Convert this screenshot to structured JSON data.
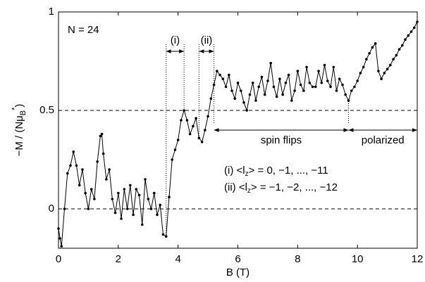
{
  "chart_data": {
    "type": "line",
    "xlabel": "B (T)",
    "ylabel": [
      "−M / (Nμ",
      "B",
      "*",
      ")"
    ],
    "color": "#000000",
    "xlim": [
      0,
      12
    ],
    "ylim": [
      -0.2,
      1
    ],
    "xticks": [
      0,
      2,
      4,
      6,
      8,
      10,
      12
    ],
    "yticks": [
      0,
      0.5,
      1
    ],
    "hlines": [
      0,
      0.5
    ],
    "x": [
      0.0,
      0.05,
      0.1,
      0.2,
      0.3,
      0.4,
      0.5,
      0.6,
      0.7,
      0.8,
      0.9,
      1.0,
      1.1,
      1.2,
      1.3,
      1.4,
      1.45,
      1.5,
      1.6,
      1.7,
      1.8,
      1.9,
      2.0,
      2.1,
      2.2,
      2.3,
      2.4,
      2.5,
      2.6,
      2.7,
      2.8,
      2.9,
      3.0,
      3.1,
      3.2,
      3.3,
      3.4,
      3.5,
      3.6,
      3.7,
      3.8,
      3.9,
      4.0,
      4.1,
      4.2,
      4.3,
      4.4,
      4.5,
      4.6,
      4.7,
      4.8,
      4.9,
      5.0,
      5.1,
      5.2,
      5.3,
      5.4,
      5.5,
      5.6,
      5.7,
      5.8,
      5.9,
      6.0,
      6.1,
      6.2,
      6.3,
      6.4,
      6.5,
      6.6,
      6.7,
      6.8,
      6.9,
      7.0,
      7.1,
      7.2,
      7.3,
      7.4,
      7.5,
      7.6,
      7.7,
      7.8,
      7.9,
      8.0,
      8.1,
      8.2,
      8.3,
      8.4,
      8.5,
      8.6,
      8.7,
      8.8,
      8.9,
      9.0,
      9.1,
      9.2,
      9.3,
      9.4,
      9.5,
      9.6,
      9.7,
      9.8,
      9.9,
      10.0,
      10.1,
      10.2,
      10.3,
      10.4,
      10.5,
      10.6,
      10.7,
      10.8,
      10.9,
      11.0,
      11.1,
      11.2,
      11.3,
      11.4,
      11.5,
      11.6,
      11.7,
      11.8,
      11.9,
      12.0
    ],
    "values": [
      -0.1,
      -0.15,
      -0.19,
      0.0,
      0.18,
      0.22,
      0.29,
      0.22,
      0.12,
      0.2,
      0.08,
      0.0,
      0.1,
      0.05,
      0.24,
      0.37,
      0.38,
      0.28,
      0.15,
      0.2,
      0.05,
      -0.02,
      0.08,
      -0.05,
      0.1,
      0.0,
      0.12,
      -0.03,
      0.1,
      0.07,
      -0.08,
      0.15,
      0.05,
      0.0,
      0.08,
      -0.03,
      0.02,
      -0.13,
      -0.14,
      0.06,
      0.25,
      0.3,
      0.35,
      0.45,
      0.5,
      0.45,
      0.38,
      0.42,
      0.46,
      0.36,
      0.34,
      0.4,
      0.47,
      0.56,
      0.63,
      0.7,
      0.68,
      0.66,
      0.62,
      0.68,
      0.6,
      0.56,
      0.64,
      0.6,
      0.54,
      0.5,
      0.58,
      0.64,
      0.55,
      0.62,
      0.67,
      0.58,
      0.65,
      0.74,
      0.62,
      0.57,
      0.66,
      0.58,
      0.64,
      0.68,
      0.55,
      0.6,
      0.7,
      0.63,
      0.6,
      0.72,
      0.64,
      0.62,
      0.62,
      0.7,
      0.64,
      0.73,
      0.65,
      0.62,
      0.72,
      0.6,
      0.66,
      0.63,
      0.58,
      0.55,
      0.6,
      0.62,
      0.65,
      0.69,
      0.72,
      0.76,
      0.79,
      0.82,
      0.84,
      0.7,
      0.66,
      0.69,
      0.71,
      0.73,
      0.76,
      0.78,
      0.81,
      0.83,
      0.86,
      0.88,
      0.9,
      0.92,
      0.95
    ],
    "annotations": {
      "n_label": "N = 24",
      "ranges": [
        {
          "label": "(i)",
          "x": [
            3.6,
            4.2
          ],
          "y": 0.8
        },
        {
          "label": "(ii)",
          "x": [
            4.7,
            5.2
          ],
          "y": 0.8
        },
        {
          "label": "spin flips",
          "x": [
            5.2,
            9.7
          ],
          "y": 0.4
        },
        {
          "label": "polarized",
          "x": [
            9.7,
            12
          ],
          "y": 0.4
        }
      ],
      "notes": [
        [
          "(i) <l",
          "z",
          "> = 0, −1, ..., −11"
        ],
        [
          "(ii) <l",
          "z",
          "> = −1, −2, ..., −12"
        ]
      ]
    }
  }
}
